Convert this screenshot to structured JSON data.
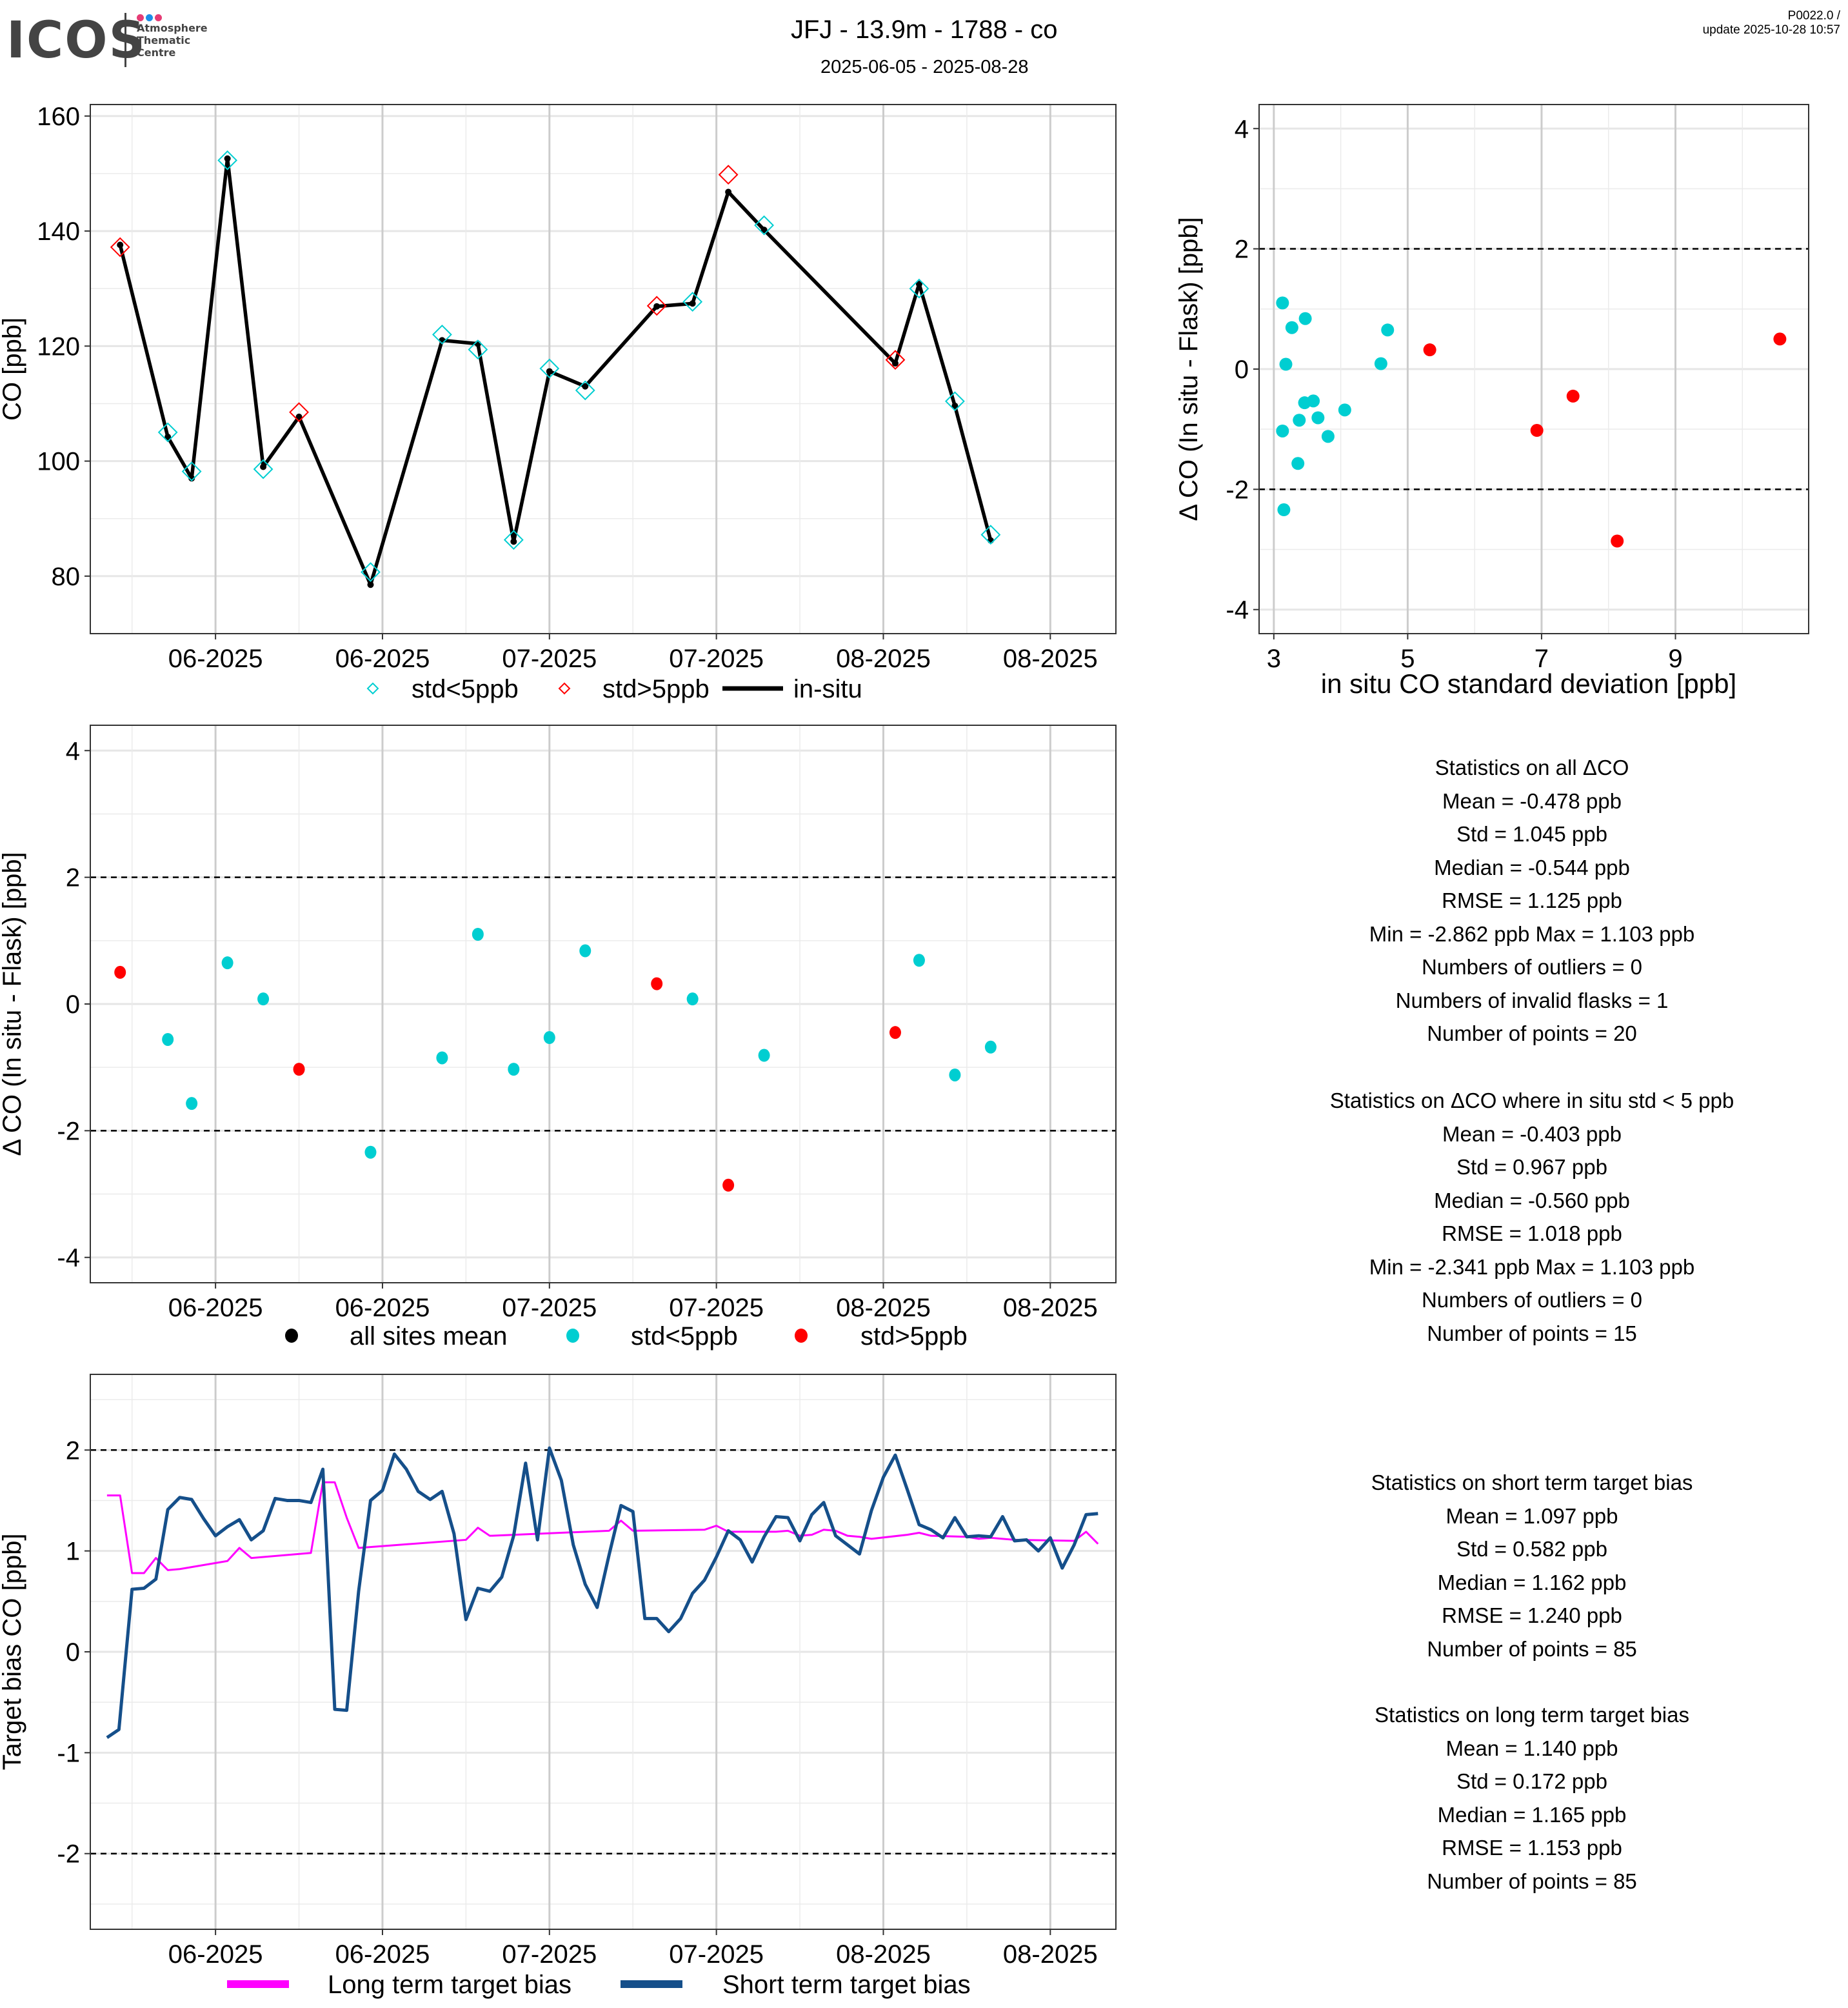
{
  "header": {
    "logo_text": "ICOS",
    "logo_subtitle": [
      "Atmosphere",
      "Thematic",
      "Centre"
    ],
    "logo_dot_colors": [
      "#e63c75",
      "#1c8fe8",
      "#e63c75"
    ],
    "title": "JFJ - 13.9m - 1788 - co",
    "date_range": "2025-06-05 - 2025-08-28",
    "version": "P0022.0 /",
    "update": "update  2025-10-28 10:57"
  },
  "colors": {
    "cyan": "#00CED1",
    "red": "#FF0000",
    "black": "#000000",
    "magenta": "#FF00FF",
    "navy": "#154F8A"
  },
  "chart_data": [
    {
      "id": "co_timeseries",
      "type": "line",
      "title": "",
      "xlabel": "",
      "ylabel": "CO [ppb]",
      "x_tick_labels": [
        "06-2025",
        "06-2025",
        "07-2025",
        "07-2025",
        "08-2025",
        "08-2025"
      ],
      "x_ticks_days": [
        8,
        22,
        36,
        50,
        64,
        78
      ],
      "x_range_days": [
        -2.5,
        83.5
      ],
      "ylim": [
        70,
        162
      ],
      "y_ticks": [
        80,
        100,
        120,
        140,
        160
      ],
      "grid": true,
      "legend": {
        "position": "bottom",
        "entries": [
          "std<5ppb",
          "std>5ppb",
          "in-situ"
        ]
      },
      "x_days": [
        0,
        4,
        6,
        9,
        12,
        15,
        21,
        27,
        30,
        33,
        36,
        39,
        45,
        48,
        51,
        54,
        65,
        67,
        70,
        73
      ],
      "in_situ": [
        137.6,
        104.2,
        97.0,
        152.6,
        99.0,
        107.7,
        78.5,
        121.0,
        120.4,
        86.0,
        115.6,
        113.0,
        126.9,
        127.4,
        146.8,
        140.2,
        117.0,
        130.8,
        109.6,
        86.2
      ],
      "flask": [
        137.2,
        105.0,
        98.2,
        152.3,
        98.6,
        108.5,
        80.7,
        122.0,
        119.4,
        86.3,
        116.1,
        112.3,
        127.0,
        127.7,
        149.8,
        141.0,
        117.6,
        130.0,
        110.4,
        87.2
      ],
      "flask_std_gt5": [
        true,
        false,
        false,
        false,
        false,
        true,
        false,
        false,
        false,
        false,
        false,
        false,
        true,
        false,
        true,
        false,
        true,
        false,
        false,
        false
      ]
    },
    {
      "id": "delta_vs_std",
      "type": "scatter",
      "xlabel": "in situ CO standard deviation [ppb]",
      "ylabel": "Δ CO (In situ - Flask) [ppb]",
      "xlim": [
        2.78,
        10.99
      ],
      "x_ticks": [
        3,
        5,
        7,
        9
      ],
      "ylim": [
        -4.4,
        4.4
      ],
      "y_ticks": [
        -4,
        -2,
        0,
        2,
        4
      ],
      "hlines": [
        2,
        -2
      ],
      "grid": true,
      "points": [
        {
          "x": 3.13,
          "y": 1.1,
          "class": "std<5ppb"
        },
        {
          "x": 3.27,
          "y": 0.69,
          "class": "std<5ppb"
        },
        {
          "x": 3.47,
          "y": 0.84,
          "class": "std<5ppb"
        },
        {
          "x": 3.18,
          "y": 0.08,
          "class": "std<5ppb"
        },
        {
          "x": 4.7,
          "y": 0.65,
          "class": "std<5ppb"
        },
        {
          "x": 4.6,
          "y": 0.09,
          "class": "std<5ppb"
        },
        {
          "x": 3.46,
          "y": -0.56,
          "class": "std<5ppb"
        },
        {
          "x": 3.59,
          "y": -0.53,
          "class": "std<5ppb"
        },
        {
          "x": 3.38,
          "y": -0.85,
          "class": "std<5ppb"
        },
        {
          "x": 3.66,
          "y": -0.81,
          "class": "std<5ppb"
        },
        {
          "x": 4.06,
          "y": -0.68,
          "class": "std<5ppb"
        },
        {
          "x": 3.13,
          "y": -1.03,
          "class": "std<5ppb"
        },
        {
          "x": 3.81,
          "y": -1.12,
          "class": "std<5ppb"
        },
        {
          "x": 3.36,
          "y": -1.57,
          "class": "std<5ppb"
        },
        {
          "x": 3.15,
          "y": -2.34,
          "class": "std<5ppb"
        },
        {
          "x": 5.33,
          "y": 0.32,
          "class": "std>5ppb"
        },
        {
          "x": 10.56,
          "y": 0.5,
          "class": "std>5ppb"
        },
        {
          "x": 7.47,
          "y": -0.45,
          "class": "std>5ppb"
        },
        {
          "x": 6.93,
          "y": -1.02,
          "class": "std>5ppb"
        },
        {
          "x": 8.13,
          "y": -2.86,
          "class": "std>5ppb"
        }
      ]
    },
    {
      "id": "delta_timeseries",
      "type": "scatter",
      "xlabel": "",
      "ylabel": "Δ CO (In situ - Flask) [ppb]",
      "x_tick_labels": [
        "06-2025",
        "06-2025",
        "07-2025",
        "07-2025",
        "08-2025",
        "08-2025"
      ],
      "x_ticks_days": [
        8,
        22,
        36,
        50,
        64,
        78
      ],
      "x_range_days": [
        -2.5,
        83.5
      ],
      "ylim": [
        -4.4,
        4.4
      ],
      "y_ticks": [
        -4,
        -2,
        0,
        2,
        4
      ],
      "hlines": [
        2,
        -2
      ],
      "grid": true,
      "legend": {
        "position": "bottom",
        "entries": [
          "all sites mean",
          "std<5ppb",
          "std>5ppb"
        ]
      },
      "points": [
        {
          "x": 0,
          "y": 0.5,
          "class": "std>5ppb"
        },
        {
          "x": 4,
          "y": -0.56,
          "class": "std<5ppb"
        },
        {
          "x": 6,
          "y": -1.57,
          "class": "std<5ppb"
        },
        {
          "x": 9,
          "y": 0.65,
          "class": "std<5ppb"
        },
        {
          "x": 12,
          "y": 0.08,
          "class": "std<5ppb"
        },
        {
          "x": 15,
          "y": -1.03,
          "class": "std>5ppb"
        },
        {
          "x": 21,
          "y": -2.34,
          "class": "std<5ppb"
        },
        {
          "x": 27,
          "y": -0.85,
          "class": "std<5ppb"
        },
        {
          "x": 30,
          "y": 1.1,
          "class": "std<5ppb"
        },
        {
          "x": 33,
          "y": -1.03,
          "class": "std<5ppb"
        },
        {
          "x": 36,
          "y": -0.53,
          "class": "std<5ppb"
        },
        {
          "x": 39,
          "y": 0.84,
          "class": "std<5ppb"
        },
        {
          "x": 45,
          "y": 0.32,
          "class": "std>5ppb"
        },
        {
          "x": 48,
          "y": 0.08,
          "class": "std<5ppb"
        },
        {
          "x": 51,
          "y": -2.86,
          "class": "std>5ppb"
        },
        {
          "x": 54,
          "y": -0.81,
          "class": "std<5ppb"
        },
        {
          "x": 65,
          "y": -0.45,
          "class": "std>5ppb"
        },
        {
          "x": 67,
          "y": 0.69,
          "class": "std<5ppb"
        },
        {
          "x": 70,
          "y": -1.12,
          "class": "std<5ppb"
        },
        {
          "x": 73,
          "y": -0.68,
          "class": "std<5ppb"
        }
      ]
    },
    {
      "id": "target_bias",
      "type": "line",
      "xlabel": "",
      "ylabel": "Target bias CO [ppb]",
      "x_tick_labels": [
        "06-2025",
        "06-2025",
        "07-2025",
        "07-2025",
        "08-2025",
        "08-2025"
      ],
      "x_ticks_days": [
        8,
        22,
        36,
        50,
        64,
        78
      ],
      "x_range_days": [
        -2.5,
        83.5
      ],
      "ylim": [
        -2.75,
        2.75
      ],
      "y_ticks": [
        -2,
        -1,
        0,
        1,
        2
      ],
      "hlines": [
        2,
        -2
      ],
      "grid": true,
      "legend": {
        "position": "bottom",
        "entries": [
          "Long term target bias",
          "Short term target bias"
        ]
      },
      "series": [
        {
          "name": "Long term target bias",
          "color": "#FF00FF",
          "x": [
            -1.1,
            0,
            1,
            2,
            3,
            4,
            5,
            9,
            10,
            11,
            16,
            17,
            18,
            19,
            20,
            29,
            30,
            31,
            41,
            42,
            43,
            49,
            50,
            51,
            55,
            56,
            57,
            58,
            59,
            60,
            61,
            62,
            63,
            66,
            67,
            68,
            71,
            72,
            73,
            74,
            75,
            80,
            81,
            82
          ],
          "values": [
            1.55,
            1.55,
            0.78,
            0.78,
            0.93,
            0.81,
            0.82,
            0.9,
            1.03,
            0.93,
            0.98,
            1.68,
            1.68,
            1.33,
            1.03,
            1.11,
            1.23,
            1.15,
            1.2,
            1.3,
            1.2,
            1.21,
            1.25,
            1.19,
            1.19,
            1.2,
            1.15,
            1.16,
            1.21,
            1.2,
            1.15,
            1.14,
            1.12,
            1.16,
            1.18,
            1.15,
            1.14,
            1.12,
            1.13,
            1.12,
            1.11,
            1.1,
            1.19,
            1.07
          ]
        },
        {
          "name": "Short term target bias",
          "color": "#154F8A",
          "x": [
            -1.1,
            -0.1,
            1,
            2,
            3,
            4,
            5,
            6,
            7,
            8,
            9,
            10,
            11,
            12,
            13,
            14,
            15,
            16,
            17,
            18,
            19,
            20,
            21,
            22,
            23,
            24,
            25,
            26,
            27,
            28,
            29,
            30,
            31,
            32,
            33,
            34,
            35,
            36,
            37,
            38,
            39,
            40,
            41,
            42,
            43,
            44,
            45,
            46,
            47,
            48,
            49,
            50,
            51,
            52,
            53,
            54,
            55,
            56,
            57,
            58,
            59,
            60,
            61,
            62,
            63,
            64,
            65,
            66,
            67,
            68,
            69,
            70,
            71,
            72,
            73,
            74,
            75,
            76,
            77,
            78,
            79,
            80,
            81,
            82
          ],
          "values": [
            -0.85,
            -0.77,
            0.62,
            0.63,
            0.72,
            1.41,
            1.53,
            1.51,
            1.32,
            1.15,
            1.24,
            1.31,
            1.11,
            1.2,
            1.52,
            1.5,
            1.5,
            1.48,
            1.81,
            -0.57,
            -0.58,
            0.6,
            1.5,
            1.6,
            1.96,
            1.81,
            1.59,
            1.51,
            1.59,
            1.17,
            0.32,
            0.63,
            0.6,
            0.74,
            1.15,
            1.87,
            1.11,
            2.02,
            1.7,
            1.06,
            0.67,
            0.44,
            0.96,
            1.45,
            1.39,
            0.33,
            0.33,
            0.2,
            0.33,
            0.58,
            0.71,
            0.94,
            1.2,
            1.11,
            0.89,
            1.14,
            1.34,
            1.33,
            1.1,
            1.36,
            1.48,
            1.15,
            1.06,
            0.97,
            1.4,
            1.73,
            1.95,
            1.61,
            1.26,
            1.21,
            1.13,
            1.33,
            1.14,
            1.15,
            1.14,
            1.34,
            1.1,
            1.11,
            1.0,
            1.13,
            0.83,
            1.06,
            1.36,
            1.37
          ]
        }
      ]
    }
  ],
  "stats": {
    "all_delta": {
      "title": "Statistics on all ΔCO",
      "lines": [
        "Mean =  -0.478 ppb",
        "Std =  1.045 ppb",
        "Median =  -0.544 ppb",
        "RMSE =  1.125 ppb",
        "Min =  -2.862 ppb Max =  1.103 ppb",
        "Numbers of outliers =  0",
        "Numbers of invalid flasks =  1",
        "Number of points =  20"
      ]
    },
    "std_lt5_delta": {
      "title": "Statistics on ΔCO where in situ std < 5 ppb",
      "lines": [
        "Mean =  -0.403 ppb",
        "Std =  0.967 ppb",
        "Median =  -0.560 ppb",
        "RMSE =  1.018 ppb",
        "Min =  -2.341 ppb Max =  1.103 ppb",
        "Numbers of outliers =  0",
        "Number of points =  15"
      ]
    },
    "short_term_bias": {
      "title": "Statistics on short term target bias",
      "lines": [
        "Mean =  1.097 ppb",
        "Std =  0.582 ppb",
        "Median =  1.162 ppb",
        "RMSE =  1.240 ppb",
        "Number of points =  85"
      ]
    },
    "long_term_bias": {
      "title": "Statistics on long term target bias",
      "lines": [
        "Mean =  1.140 ppb",
        "Std =  0.172 ppb",
        "Median =  1.165 ppb",
        "RMSE =  1.153 ppb",
        "Number of points =  85"
      ]
    }
  }
}
